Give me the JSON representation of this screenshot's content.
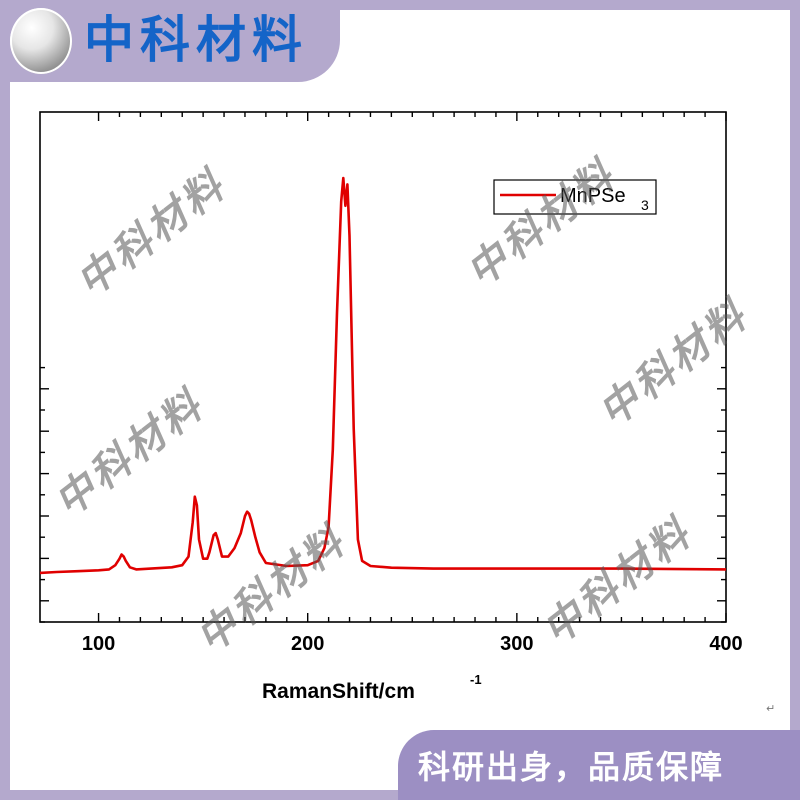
{
  "brand": {
    "title": "中科材料",
    "logo_icon": "brand-logo-icon"
  },
  "footer": {
    "slogan": "科研出身，品质保障"
  },
  "return_mark": "↵",
  "watermark_text": "中科材料",
  "colors": {
    "frame": "#b4a9cd",
    "footer": "#9c8fc3",
    "title": "#1464c8",
    "series": "#e00000"
  },
  "chart_data": {
    "type": "line",
    "title": "",
    "xlabel": "RamanShift/cm",
    "xlabel_superscript": "-1",
    "ylabel": "",
    "xlim": [
      72,
      400
    ],
    "xticks": [
      100,
      200,
      300,
      400
    ],
    "ylim": [
      0,
      1
    ],
    "yticks_labeled": false,
    "grid": false,
    "legend": {
      "placement": "top-right",
      "label_main": "MnPSe",
      "label_sub": "3"
    },
    "series": [
      {
        "name": "MnPSe3",
        "color": "#e00000",
        "x": [
          72,
          80,
          90,
          100,
          105,
          108,
          110,
          111,
          112,
          113,
          115,
          118,
          125,
          135,
          140,
          143,
          145,
          146,
          147,
          148,
          150,
          152,
          153,
          155,
          156,
          157,
          159,
          162,
          165,
          168,
          170,
          171,
          172,
          173,
          175,
          177,
          180,
          190,
          200,
          205,
          208,
          210,
          212,
          214,
          216,
          217,
          218,
          219,
          220,
          222,
          224,
          226,
          230,
          240,
          260,
          300,
          350,
          400
        ],
        "y": [
          0.012,
          0.014,
          0.016,
          0.018,
          0.02,
          0.03,
          0.045,
          0.055,
          0.05,
          0.04,
          0.025,
          0.02,
          0.022,
          0.025,
          0.03,
          0.05,
          0.13,
          0.19,
          0.17,
          0.09,
          0.045,
          0.045,
          0.06,
          0.1,
          0.105,
          0.09,
          0.05,
          0.05,
          0.07,
          0.105,
          0.145,
          0.155,
          0.15,
          0.135,
          0.095,
          0.06,
          0.035,
          0.028,
          0.03,
          0.04,
          0.07,
          0.12,
          0.3,
          0.62,
          0.88,
          0.935,
          0.87,
          0.92,
          0.8,
          0.35,
          0.09,
          0.04,
          0.028,
          0.024,
          0.022,
          0.022,
          0.022,
          0.02
        ]
      }
    ]
  }
}
